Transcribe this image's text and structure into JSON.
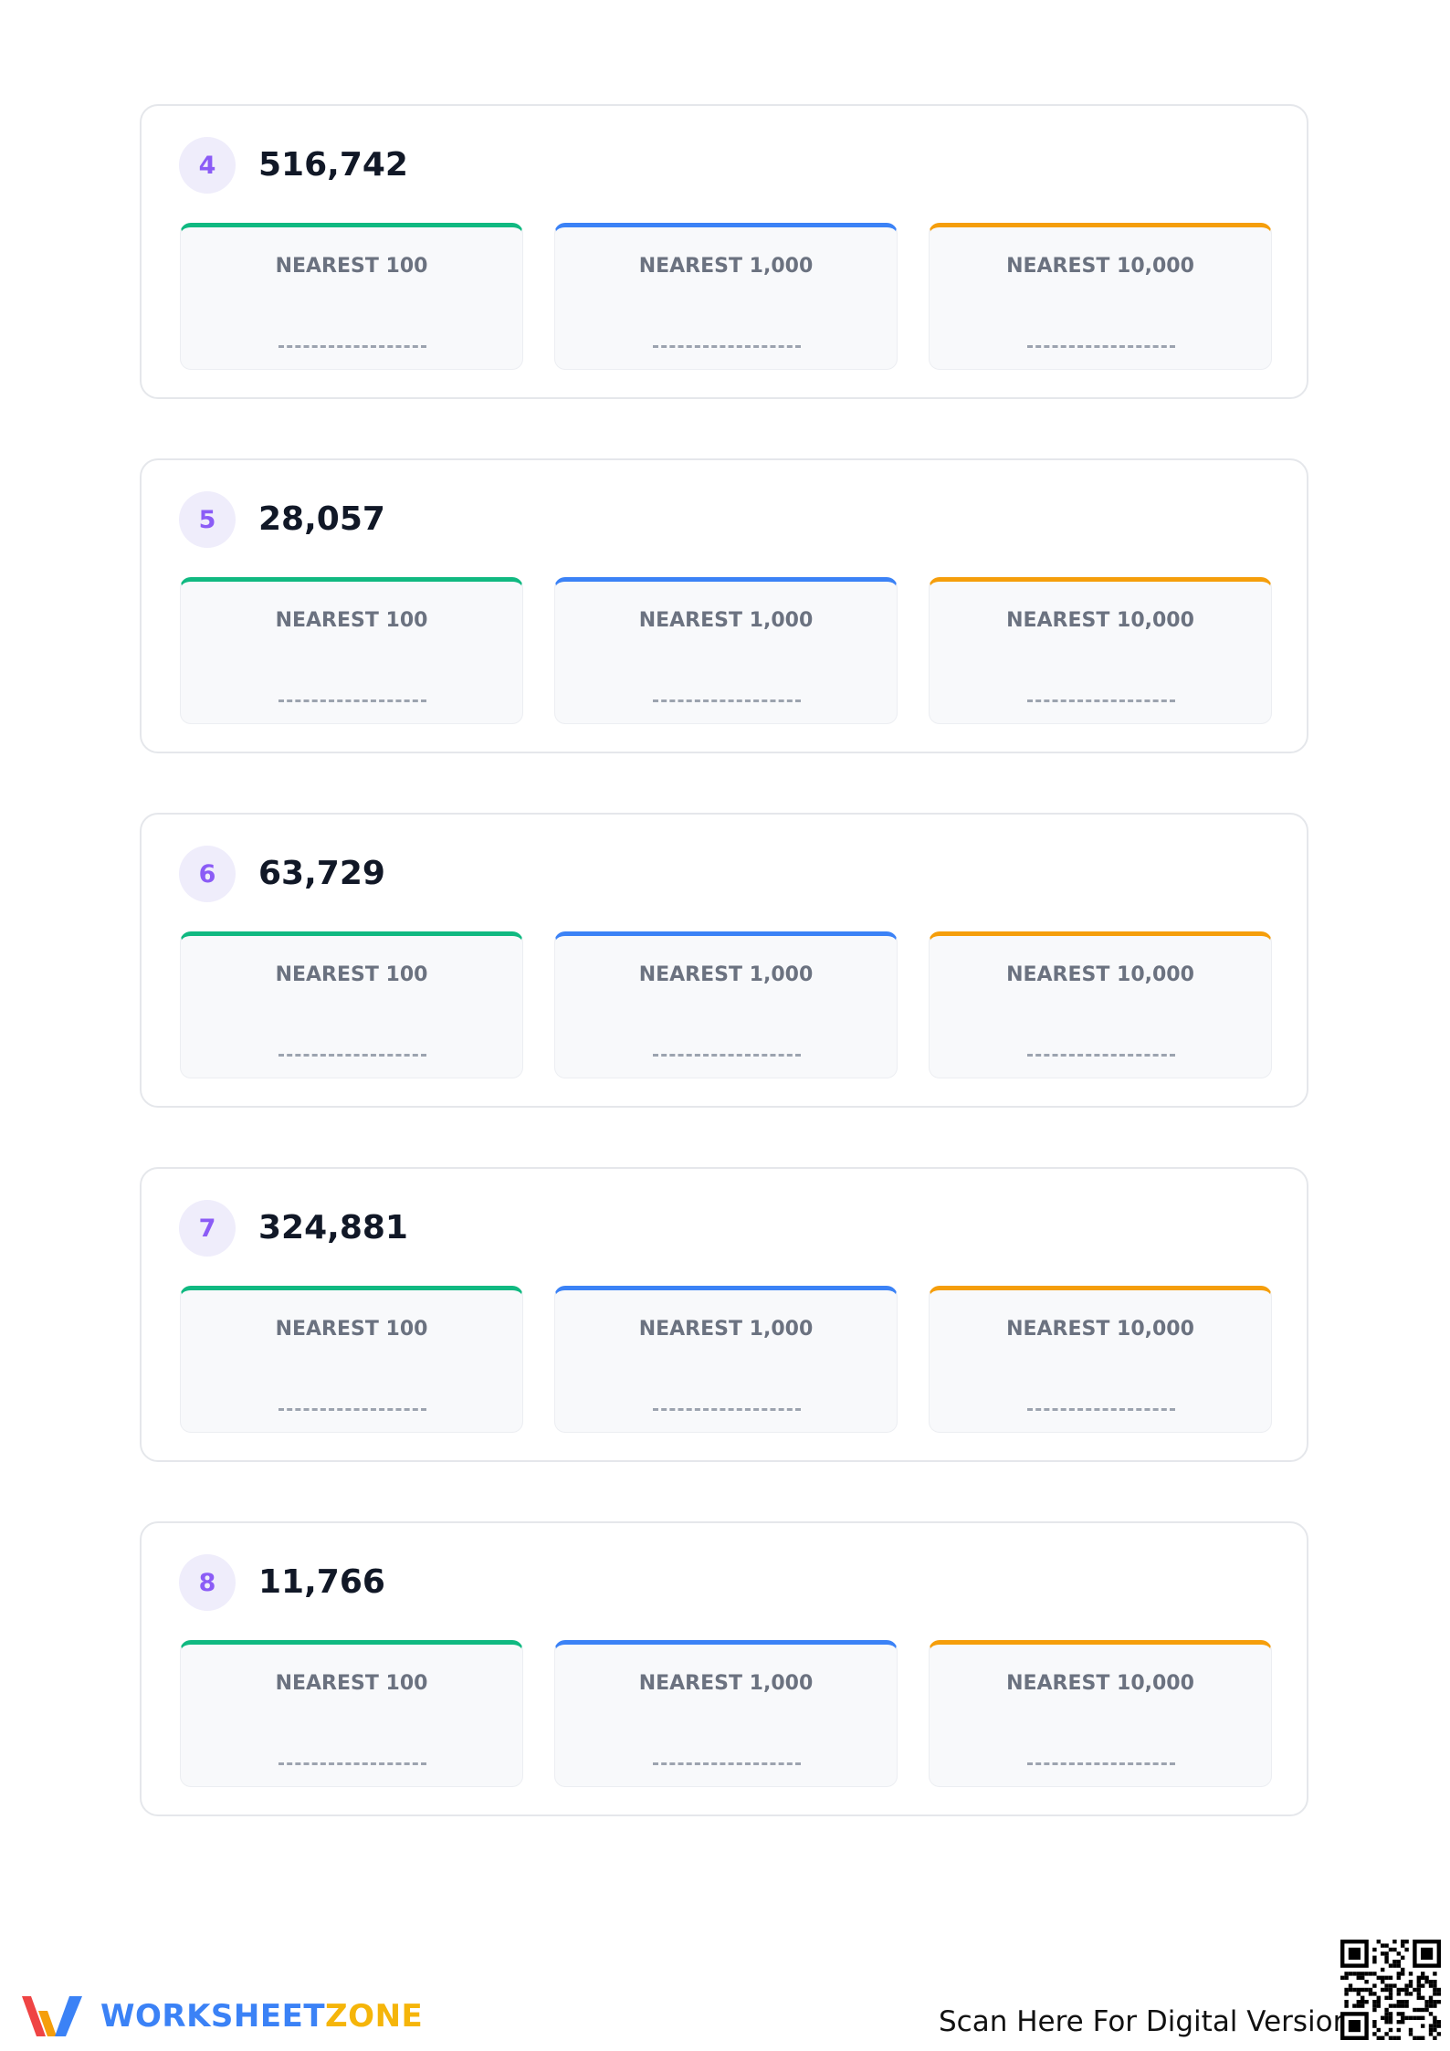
{
  "columns": [
    "NEAREST 100",
    "NEAREST 1,000",
    "NEAREST 10,000"
  ],
  "problems": [
    {
      "index": "4",
      "number": "516,742"
    },
    {
      "index": "5",
      "number": "28,057"
    },
    {
      "index": "6",
      "number": "63,729"
    },
    {
      "index": "7",
      "number": "324,881"
    },
    {
      "index": "8",
      "number": "11,766"
    }
  ],
  "footer": {
    "brand_part1": "WORKSHEET",
    "brand_part2": "ZONE",
    "scan_text": "Scan Here For Digital Version"
  }
}
